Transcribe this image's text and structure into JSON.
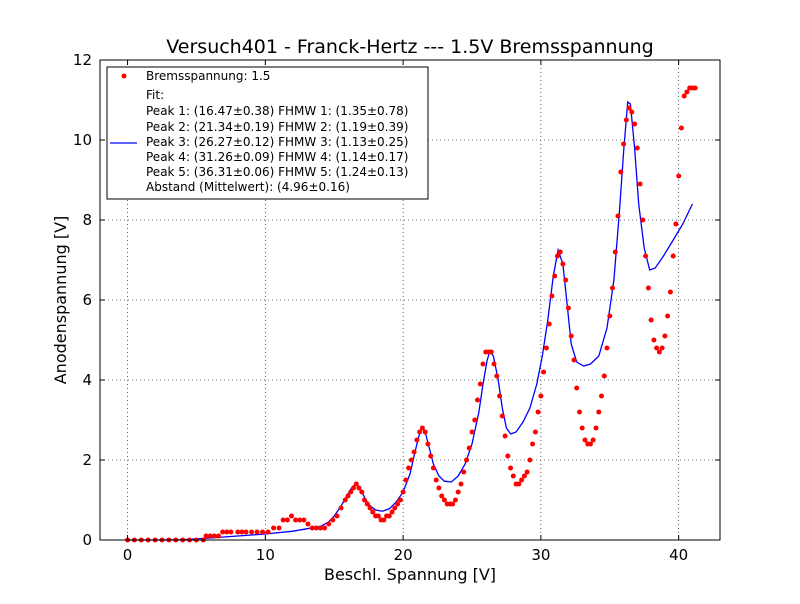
{
  "chart_data": {
    "type": "scatter",
    "title": "Versuch401 - Franck-Hertz --- 1.5V Bremsspannung",
    "xlabel": "Beschl. Spannung [V]",
    "ylabel": "Anodenspannung [V]",
    "xlim": [
      -2,
      43
    ],
    "ylim": [
      0,
      12
    ],
    "xticks": [
      0,
      10,
      20,
      30,
      40
    ],
    "yticks": [
      0,
      2,
      4,
      6,
      8,
      10,
      12
    ],
    "grid": true,
    "legend_position": "top-left",
    "series": [
      {
        "name": "Bremsspannung: 1.5",
        "kind": "scatter",
        "color": "#ff0000",
        "points": [
          [
            0.0,
            0.0
          ],
          [
            0.5,
            0.0
          ],
          [
            1.0,
            0.0
          ],
          [
            1.5,
            0.0
          ],
          [
            2.0,
            0.0
          ],
          [
            2.5,
            0.0
          ],
          [
            3.0,
            0.0
          ],
          [
            3.5,
            0.0
          ],
          [
            4.0,
            0.0
          ],
          [
            4.5,
            0.0
          ],
          [
            5.0,
            0.0
          ],
          [
            5.5,
            0.0
          ],
          [
            5.7,
            0.1
          ],
          [
            6.0,
            0.1
          ],
          [
            6.3,
            0.1
          ],
          [
            6.6,
            0.1
          ],
          [
            6.9,
            0.2
          ],
          [
            7.2,
            0.2
          ],
          [
            7.5,
            0.2
          ],
          [
            8.0,
            0.2
          ],
          [
            8.3,
            0.2
          ],
          [
            8.6,
            0.2
          ],
          [
            9.0,
            0.2
          ],
          [
            9.4,
            0.2
          ],
          [
            9.8,
            0.2
          ],
          [
            10.2,
            0.2
          ],
          [
            10.6,
            0.3
          ],
          [
            11.0,
            0.3
          ],
          [
            11.3,
            0.5
          ],
          [
            11.6,
            0.5
          ],
          [
            11.9,
            0.6
          ],
          [
            12.2,
            0.5
          ],
          [
            12.5,
            0.5
          ],
          [
            12.8,
            0.5
          ],
          [
            13.1,
            0.4
          ],
          [
            13.4,
            0.3
          ],
          [
            13.7,
            0.3
          ],
          [
            14.0,
            0.3
          ],
          [
            14.3,
            0.3
          ],
          [
            14.6,
            0.4
          ],
          [
            14.9,
            0.5
          ],
          [
            15.2,
            0.6
          ],
          [
            15.5,
            0.8
          ],
          [
            15.8,
            1.0
          ],
          [
            16.0,
            1.1
          ],
          [
            16.2,
            1.2
          ],
          [
            16.4,
            1.3
          ],
          [
            16.6,
            1.4
          ],
          [
            16.8,
            1.3
          ],
          [
            17.0,
            1.2
          ],
          [
            17.2,
            1.0
          ],
          [
            17.4,
            0.9
          ],
          [
            17.6,
            0.8
          ],
          [
            17.8,
            0.7
          ],
          [
            18.0,
            0.6
          ],
          [
            18.2,
            0.6
          ],
          [
            18.4,
            0.5
          ],
          [
            18.6,
            0.5
          ],
          [
            18.8,
            0.6
          ],
          [
            19.0,
            0.6
          ],
          [
            19.2,
            0.7
          ],
          [
            19.4,
            0.8
          ],
          [
            19.6,
            0.9
          ],
          [
            19.8,
            1.0
          ],
          [
            20.0,
            1.2
          ],
          [
            20.2,
            1.5
          ],
          [
            20.4,
            1.8
          ],
          [
            20.6,
            2.0
          ],
          [
            20.8,
            2.2
          ],
          [
            21.0,
            2.5
          ],
          [
            21.2,
            2.7
          ],
          [
            21.4,
            2.8
          ],
          [
            21.6,
            2.7
          ],
          [
            21.8,
            2.4
          ],
          [
            22.0,
            2.1
          ],
          [
            22.2,
            1.8
          ],
          [
            22.4,
            1.5
          ],
          [
            22.6,
            1.3
          ],
          [
            22.8,
            1.1
          ],
          [
            23.0,
            1.0
          ],
          [
            23.2,
            0.9
          ],
          [
            23.4,
            0.9
          ],
          [
            23.6,
            0.9
          ],
          [
            23.8,
            1.0
          ],
          [
            24.0,
            1.2
          ],
          [
            24.2,
            1.4
          ],
          [
            24.4,
            1.7
          ],
          [
            24.6,
            2.0
          ],
          [
            24.8,
            2.3
          ],
          [
            25.0,
            2.7
          ],
          [
            25.2,
            3.0
          ],
          [
            25.4,
            3.5
          ],
          [
            25.6,
            3.9
          ],
          [
            25.8,
            4.4
          ],
          [
            26.0,
            4.7
          ],
          [
            26.2,
            4.7
          ],
          [
            26.4,
            4.7
          ],
          [
            26.6,
            4.4
          ],
          [
            26.8,
            4.1
          ],
          [
            27.0,
            3.6
          ],
          [
            27.2,
            3.1
          ],
          [
            27.4,
            2.6
          ],
          [
            27.6,
            2.1
          ],
          [
            27.8,
            1.8
          ],
          [
            28.0,
            1.6
          ],
          [
            28.2,
            1.4
          ],
          [
            28.4,
            1.4
          ],
          [
            28.6,
            1.5
          ],
          [
            28.8,
            1.6
          ],
          [
            29.0,
            1.7
          ],
          [
            29.2,
            2.0
          ],
          [
            29.4,
            2.4
          ],
          [
            29.6,
            2.7
          ],
          [
            29.8,
            3.2
          ],
          [
            30.0,
            3.6
          ],
          [
            30.2,
            4.2
          ],
          [
            30.4,
            4.8
          ],
          [
            30.6,
            5.4
          ],
          [
            30.8,
            6.1
          ],
          [
            31.0,
            6.6
          ],
          [
            31.2,
            7.1
          ],
          [
            31.4,
            7.2
          ],
          [
            31.6,
            6.9
          ],
          [
            31.8,
            6.5
          ],
          [
            32.0,
            5.8
          ],
          [
            32.2,
            5.1
          ],
          [
            32.4,
            4.5
          ],
          [
            32.6,
            3.8
          ],
          [
            32.8,
            3.2
          ],
          [
            33.0,
            2.8
          ],
          [
            33.2,
            2.5
          ],
          [
            33.4,
            2.4
          ],
          [
            33.6,
            2.4
          ],
          [
            33.8,
            2.5
          ],
          [
            34.0,
            2.8
          ],
          [
            34.2,
            3.2
          ],
          [
            34.4,
            3.6
          ],
          [
            34.6,
            4.1
          ],
          [
            34.8,
            4.8
          ],
          [
            35.0,
            5.6
          ],
          [
            35.2,
            6.3
          ],
          [
            35.4,
            7.2
          ],
          [
            35.6,
            8.1
          ],
          [
            35.8,
            9.2
          ],
          [
            36.0,
            9.9
          ],
          [
            36.2,
            10.5
          ],
          [
            36.4,
            10.8
          ],
          [
            36.6,
            10.7
          ],
          [
            36.8,
            10.4
          ],
          [
            37.0,
            9.8
          ],
          [
            37.2,
            8.9
          ],
          [
            37.4,
            8.0
          ],
          [
            37.6,
            7.1
          ],
          [
            37.8,
            6.3
          ],
          [
            38.0,
            5.5
          ],
          [
            38.2,
            5.0
          ],
          [
            38.4,
            4.8
          ],
          [
            38.6,
            4.7
          ],
          [
            38.8,
            4.8
          ],
          [
            39.0,
            5.1
          ],
          [
            39.2,
            5.6
          ],
          [
            39.4,
            6.2
          ],
          [
            39.6,
            7.1
          ],
          [
            39.8,
            7.9
          ],
          [
            40.0,
            9.1
          ],
          [
            40.2,
            10.3
          ],
          [
            40.4,
            11.1
          ],
          [
            40.6,
            11.2
          ],
          [
            40.8,
            11.3
          ],
          [
            41.0,
            11.3
          ],
          [
            41.2,
            11.3
          ]
        ]
      },
      {
        "name": "Fit:",
        "kind": "line",
        "color": "#0000ff",
        "points": [
          [
            0,
            0
          ],
          [
            2,
            0
          ],
          [
            4,
            0.01
          ],
          [
            6,
            0.05
          ],
          [
            8,
            0.1
          ],
          [
            10,
            0.15
          ],
          [
            12,
            0.22
          ],
          [
            13,
            0.28
          ],
          [
            14,
            0.34
          ],
          [
            14.6,
            0.45
          ],
          [
            15,
            0.6
          ],
          [
            15.5,
            0.85
          ],
          [
            16,
            1.15
          ],
          [
            16.3,
            1.32
          ],
          [
            16.5,
            1.38
          ],
          [
            16.7,
            1.35
          ],
          [
            17,
            1.2
          ],
          [
            17.3,
            1.0
          ],
          [
            17.6,
            0.86
          ],
          [
            18,
            0.75
          ],
          [
            18.5,
            0.72
          ],
          [
            19,
            0.78
          ],
          [
            19.5,
            0.95
          ],
          [
            20,
            1.2
          ],
          [
            20.5,
            1.65
          ],
          [
            20.8,
            2.1
          ],
          [
            21.1,
            2.55
          ],
          [
            21.35,
            2.8
          ],
          [
            21.6,
            2.7
          ],
          [
            21.9,
            2.3
          ],
          [
            22.2,
            1.9
          ],
          [
            22.6,
            1.6
          ],
          [
            23,
            1.47
          ],
          [
            23.5,
            1.45
          ],
          [
            24,
            1.6
          ],
          [
            24.5,
            1.9
          ],
          [
            25,
            2.4
          ],
          [
            25.5,
            3.2
          ],
          [
            25.8,
            3.9
          ],
          [
            26.1,
            4.5
          ],
          [
            26.3,
            4.72
          ],
          [
            26.55,
            4.6
          ],
          [
            26.9,
            4.0
          ],
          [
            27.2,
            3.3
          ],
          [
            27.5,
            2.8
          ],
          [
            27.8,
            2.65
          ],
          [
            28.2,
            2.7
          ],
          [
            28.7,
            2.95
          ],
          [
            29.2,
            3.3
          ],
          [
            29.7,
            3.9
          ],
          [
            30.1,
            4.6
          ],
          [
            30.5,
            5.5
          ],
          [
            30.9,
            6.6
          ],
          [
            31.25,
            7.25
          ],
          [
            31.6,
            6.9
          ],
          [
            31.9,
            5.9
          ],
          [
            32.2,
            4.9
          ],
          [
            32.6,
            4.45
          ],
          [
            33.1,
            4.35
          ],
          [
            33.6,
            4.4
          ],
          [
            34.2,
            4.6
          ],
          [
            34.8,
            5.3
          ],
          [
            35.3,
            6.5
          ],
          [
            35.7,
            8.2
          ],
          [
            36.0,
            9.7
          ],
          [
            36.3,
            10.95
          ],
          [
            36.5,
            10.9
          ],
          [
            36.8,
            9.8
          ],
          [
            37.1,
            8.4
          ],
          [
            37.5,
            7.3
          ],
          [
            37.9,
            6.75
          ],
          [
            38.3,
            6.8
          ],
          [
            38.9,
            7.1
          ],
          [
            39.6,
            7.5
          ],
          [
            40.3,
            7.9
          ],
          [
            41.0,
            8.4
          ]
        ]
      }
    ],
    "legend_lines": [
      "Bremsspannung: 1.5",
      "Fit:",
      "Peak 1: (16.47±0.38)  FHMW 1: (1.35±0.78)",
      "Peak 2: (21.34±0.19)  FHMW 2: (1.19±0.39)",
      "Peak 3: (26.27±0.12)  FHMW 3: (1.13±0.25)",
      "Peak 4: (31.26±0.09)  FHMW 4: (1.14±0.17)",
      "Peak 5: (36.31±0.06)  FHMW 5: (1.24±0.13)",
      "Abstand (Mittelwert): (4.96±0.16)"
    ]
  }
}
